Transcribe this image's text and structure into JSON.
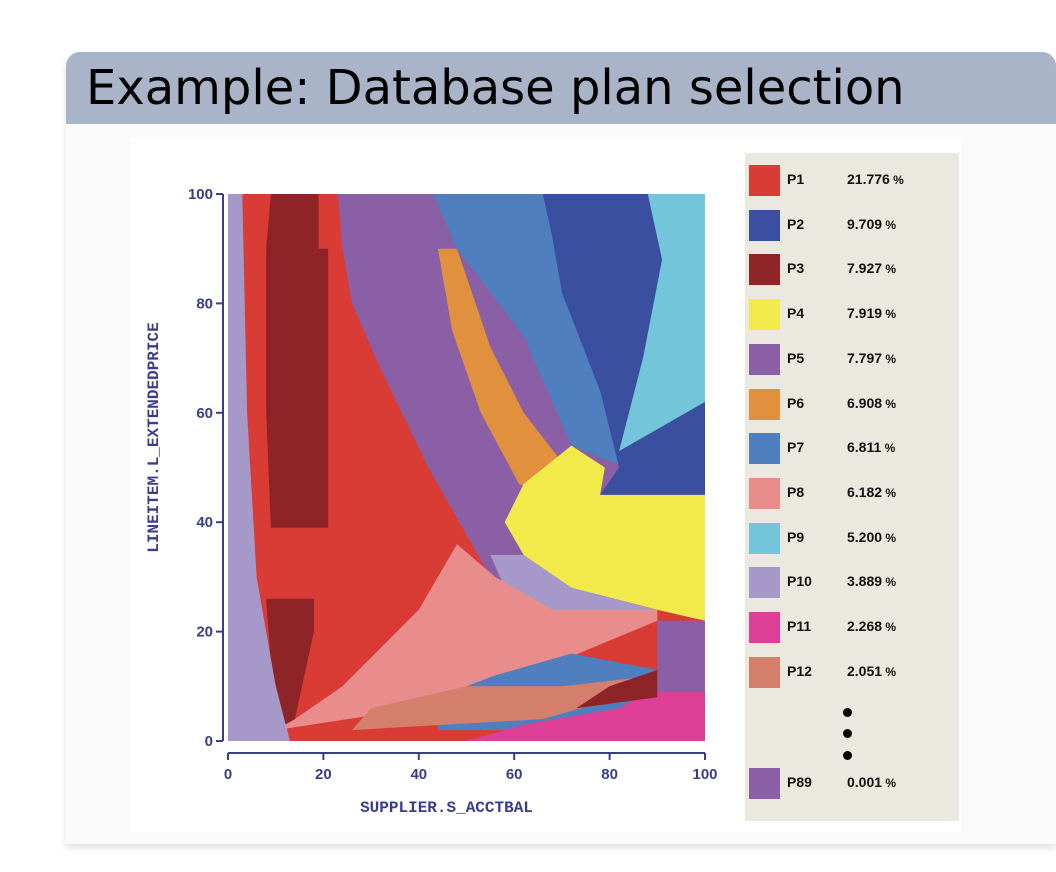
{
  "slide": {
    "title": "Example: Database plan selection",
    "header_color": "#aab4c8"
  },
  "chart_data": {
    "type": "plan-diagram",
    "xlabel": "SUPPLIER.S_ACCTBAL",
    "ylabel": "LINEITEM.L_EXTENDEDPRICE",
    "xlim": [
      0,
      100
    ],
    "ylim": [
      0,
      100
    ],
    "xticks": [
      "0",
      "20",
      "40",
      "60",
      "80",
      "100"
    ],
    "yticks": [
      "0",
      "20",
      "40",
      "60",
      "80",
      "100"
    ],
    "plans": [
      {
        "name": "P1",
        "value": "21.776",
        "unit": "%",
        "color": "#d93b35"
      },
      {
        "name": "P2",
        "value": "9.709",
        "unit": "%",
        "color": "#3a4f9f"
      },
      {
        "name": "P3",
        "value": "7.927",
        "unit": "%",
        "color": "#8e2427"
      },
      {
        "name": "P4",
        "value": "7.919",
        "unit": "%",
        "color": "#f2e94a"
      },
      {
        "name": "P5",
        "value": "7.797",
        "unit": "%",
        "color": "#8a5fa5"
      },
      {
        "name": "P6",
        "value": "6.908",
        "unit": "%",
        "color": "#e1913e"
      },
      {
        "name": "P7",
        "value": "6.811",
        "unit": "%",
        "color": "#4f7fbe"
      },
      {
        "name": "P8",
        "value": "6.182",
        "unit": "%",
        "color": "#e88c8c"
      },
      {
        "name": "P9",
        "value": "5.200",
        "unit": "%",
        "color": "#73c6d9"
      },
      {
        "name": "P10",
        "value": "3.889",
        "unit": "%",
        "color": "#a699c9"
      },
      {
        "name": "P11",
        "value": "2.268",
        "unit": "%",
        "color": "#de3f97"
      },
      {
        "name": "P12",
        "value": "2.051",
        "unit": "%",
        "color": "#d47f6c"
      },
      {
        "name": "P89",
        "value": "0.001",
        "unit": "%",
        "color": "#8a5fa5"
      }
    ],
    "regions": [
      {
        "plan": "P1",
        "points": [
          [
            0,
            0
          ],
          [
            100,
            0
          ],
          [
            100,
            100
          ],
          [
            0,
            100
          ]
        ]
      },
      {
        "plan": "P5",
        "points": [
          [
            23,
            100
          ],
          [
            100,
            100
          ],
          [
            100,
            30
          ],
          [
            62,
            20
          ],
          [
            55,
            30
          ],
          [
            42,
            50
          ],
          [
            32,
            68
          ],
          [
            26,
            80
          ],
          [
            24,
            90
          ]
        ]
      },
      {
        "plan": "P7",
        "points": [
          [
            43,
            100
          ],
          [
            100,
            100
          ],
          [
            100,
            44
          ],
          [
            72,
            54
          ],
          [
            62,
            74
          ],
          [
            48,
            90
          ]
        ]
      },
      {
        "plan": "P6",
        "points": [
          [
            44,
            90
          ],
          [
            48,
            90
          ],
          [
            55,
            72
          ],
          [
            62,
            60
          ],
          [
            70,
            51
          ],
          [
            68,
            44
          ],
          [
            61,
            47
          ],
          [
            53,
            60
          ],
          [
            47,
            75
          ]
        ]
      },
      {
        "plan": "P2",
        "points": [
          [
            66,
            100
          ],
          [
            100,
            100
          ],
          [
            100,
            45
          ],
          [
            78,
            45
          ],
          [
            82,
            50
          ],
          [
            78,
            64
          ],
          [
            70,
            82
          ],
          [
            68,
            92
          ]
        ]
      },
      {
        "plan": "P9",
        "points": [
          [
            88,
            100
          ],
          [
            100,
            100
          ],
          [
            100,
            62
          ],
          [
            82,
            53
          ],
          [
            87,
            70
          ],
          [
            91,
            88
          ]
        ]
      },
      {
        "plan": "P4",
        "points": [
          [
            62,
            47
          ],
          [
            72,
            54
          ],
          [
            79,
            50
          ],
          [
            78,
            45
          ],
          [
            100,
            45
          ],
          [
            100,
            22
          ],
          [
            90,
            24
          ],
          [
            72,
            28
          ],
          [
            62,
            34
          ],
          [
            58,
            40
          ]
        ]
      },
      {
        "plan": "P10",
        "points": [
          [
            55,
            34
          ],
          [
            62,
            34
          ],
          [
            72,
            28
          ],
          [
            90,
            24
          ],
          [
            68,
            22
          ],
          [
            54,
            20
          ],
          [
            58,
            28
          ]
        ]
      },
      {
        "plan": "P8",
        "points": [
          [
            10,
            2
          ],
          [
            40,
            6
          ],
          [
            68,
            14
          ],
          [
            90,
            22
          ],
          [
            90,
            24
          ],
          [
            68,
            24
          ],
          [
            56,
            30
          ],
          [
            48,
            36
          ],
          [
            40,
            24
          ],
          [
            24,
            10
          ],
          [
            14,
            4
          ]
        ]
      },
      {
        "plan": "P3",
        "points": [
          [
            9,
            100
          ],
          [
            19,
            100
          ],
          [
            19,
            90
          ],
          [
            21,
            90
          ],
          [
            21,
            39
          ],
          [
            9,
            39
          ],
          [
            8,
            60
          ],
          [
            8,
            90
          ]
        ]
      },
      {
        "plan": "P3",
        "points": [
          [
            8,
            26
          ],
          [
            18,
            26
          ],
          [
            18,
            20
          ],
          [
            14,
            4
          ],
          [
            12,
            3
          ],
          [
            9,
            14
          ]
        ]
      },
      {
        "plan": "P7",
        "points": [
          [
            44,
            2
          ],
          [
            70,
            2
          ],
          [
            90,
            5
          ],
          [
            90,
            13
          ],
          [
            72,
            16
          ],
          [
            56,
            12
          ],
          [
            44,
            8
          ]
        ]
      },
      {
        "plan": "P12",
        "points": [
          [
            26,
            2
          ],
          [
            66,
            4
          ],
          [
            90,
            10
          ],
          [
            90,
            12
          ],
          [
            70,
            10
          ],
          [
            50,
            10
          ],
          [
            30,
            6
          ]
        ]
      },
      {
        "plan": "P11",
        "points": [
          [
            50,
            0
          ],
          [
            100,
            0
          ],
          [
            100,
            13
          ],
          [
            90,
            10
          ],
          [
            82,
            6
          ],
          [
            62,
            3
          ]
        ]
      },
      {
        "plan": "P5",
        "points": [
          [
            90,
            9
          ],
          [
            100,
            9
          ],
          [
            100,
            22
          ],
          [
            90,
            22
          ]
        ]
      },
      {
        "plan": "P3",
        "points": [
          [
            73,
            6
          ],
          [
            90,
            8
          ],
          [
            90,
            13
          ],
          [
            80,
            10
          ]
        ]
      },
      {
        "plan": "P10",
        "points": [
          [
            0,
            0
          ],
          [
            13,
            0
          ],
          [
            10,
            10
          ],
          [
            6,
            30
          ],
          [
            4,
            60
          ],
          [
            3,
            100
          ],
          [
            0,
            100
          ]
        ]
      }
    ]
  }
}
